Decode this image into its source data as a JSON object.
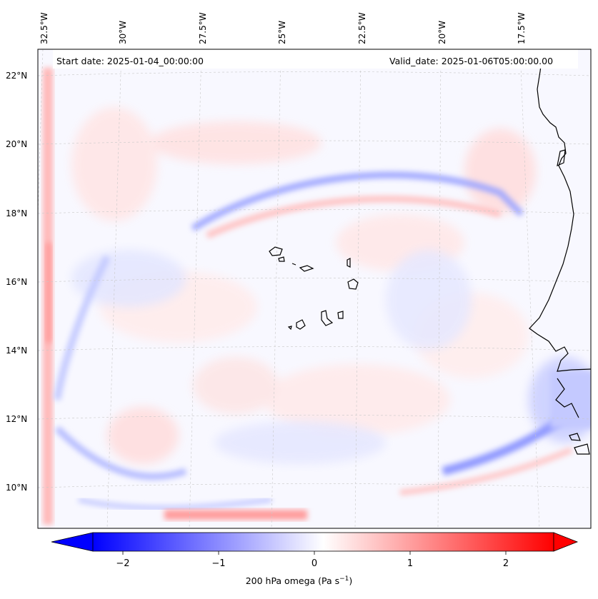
{
  "map": {
    "start_label": "Start date: 2025-01-04_00:00:00",
    "valid_label": "Valid_date: 2025-01-06T05:00:00.00",
    "lon_labels": [
      "32.5°W",
      "30°W",
      "27.5°W",
      "25°W",
      "22.5°W",
      "20°W",
      "17.5°W"
    ],
    "lat_labels": [
      "22°N",
      "20°N",
      "18°N",
      "16°N",
      "14°N",
      "12°N",
      "10°N"
    ]
  },
  "colorbar": {
    "ticks": [
      "−2",
      "−1",
      "0",
      "1",
      "2"
    ],
    "title_main": "200 hPa omega (Pa s",
    "title_sup": "−1",
    "title_end": ")",
    "min_color": "#0000ff",
    "mid_color": "#ffffff",
    "max_color": "#ff0000"
  }
}
